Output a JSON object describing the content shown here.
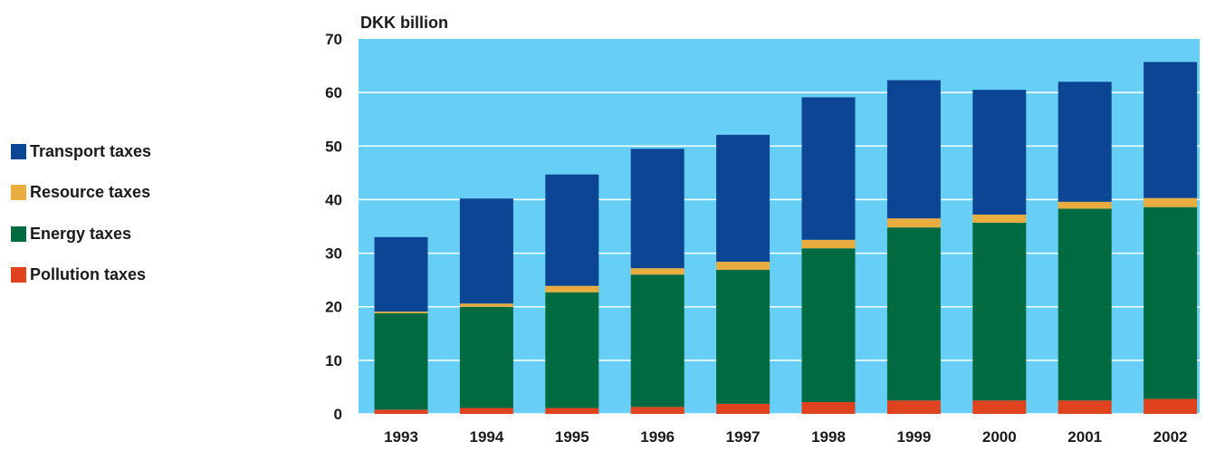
{
  "chart_data": {
    "type": "bar",
    "stacked": true,
    "ylabel": "DKK billion",
    "ylim": [
      0,
      70
    ],
    "yticks": [
      0,
      10,
      20,
      30,
      40,
      50,
      60,
      70
    ],
    "grid": true,
    "legend_position": "left",
    "categories": [
      "1993",
      "1994",
      "1995",
      "1996",
      "1997",
      "1998",
      "1999",
      "2000",
      "2001",
      "2002"
    ],
    "series": [
      {
        "name": "Pollution taxes",
        "color": "#e0421e",
        "values": [
          0.8,
          1.1,
          1.1,
          1.3,
          1.9,
          2.2,
          2.5,
          2.5,
          2.5,
          2.8
        ]
      },
      {
        "name": "Energy taxes",
        "color": "#006a40",
        "values": [
          18.0,
          18.9,
          21.6,
          24.7,
          25.0,
          28.7,
          32.3,
          33.2,
          35.8,
          35.8
        ]
      },
      {
        "name": "Resource taxes",
        "color": "#e9ad3f",
        "values": [
          0.3,
          0.6,
          1.2,
          1.2,
          1.5,
          1.6,
          1.7,
          1.5,
          1.3,
          1.7
        ]
      },
      {
        "name": "Transport taxes",
        "color": "#0c4594",
        "values": [
          13.9,
          19.6,
          20.8,
          22.3,
          23.7,
          26.6,
          25.8,
          23.3,
          22.4,
          25.4
        ]
      }
    ],
    "legend_order": [
      "Transport taxes",
      "Resource taxes",
      "Energy taxes",
      "Pollution taxes"
    ],
    "plot_background": "#67cff5",
    "gridline_color": "#ffffff"
  }
}
